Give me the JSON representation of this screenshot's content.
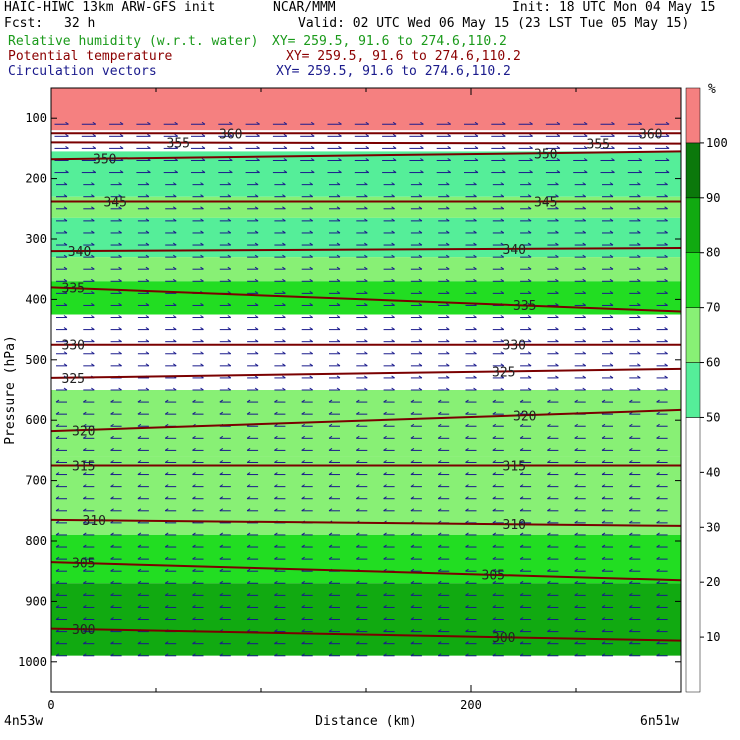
{
  "header": {
    "model": "HAIC-HIWC 13km ARW-GFS init",
    "center": "NCAR/MMM",
    "init": "Init: 18 UTC Mon 04 May 15",
    "fcst_label": "Fcst:",
    "fcst_value": "32 h",
    "valid": "Valid: 02 UTC Wed 06 May 15 (23 LST Tue 05 May 15)"
  },
  "fields": [
    {
      "label": "Relative humidity (w.r.t. water)",
      "xy": "XY= 259.5, 91.6 to 274.6,110.2",
      "color": "#1a9a1a"
    },
    {
      "label": "Potential temperature",
      "xy": "XY= 259.5, 91.6 to 274.6,110.2",
      "color": "#8b0000"
    },
    {
      "label": "Circulation vectors",
      "xy": "XY= 259.5, 91.6 to 274.6,110.2",
      "color": "#1a1a8c"
    }
  ],
  "chart_data": {
    "type": "heatmap",
    "xlabel": "Distance (km)",
    "ylabel": "Pressure (hPa)",
    "x_ticks": [
      0,
      200
    ],
    "xlim": [
      0,
      300
    ],
    "y_ticks": [
      100,
      200,
      300,
      400,
      500,
      600,
      700,
      800,
      900,
      1000
    ],
    "ylim": [
      1050,
      50
    ],
    "x_left_label": "4n53w",
    "x_right_label": "6n51w",
    "colorbar": {
      "unit": "%",
      "ticks": [
        10,
        20,
        30,
        40,
        50,
        60,
        70,
        80,
        90,
        100
      ],
      "bins": [
        {
          "lo": 0,
          "hi": 50,
          "color": "#ffffff"
        },
        {
          "lo": 50,
          "hi": 60,
          "color": "#55ee99"
        },
        {
          "lo": 60,
          "hi": 70,
          "color": "#88f075"
        },
        {
          "lo": 70,
          "hi": 80,
          "color": "#22dd22"
        },
        {
          "lo": 80,
          "hi": 90,
          "color": "#11aa11"
        },
        {
          "lo": 90,
          "hi": 100,
          "color": "#0b780b"
        },
        {
          "lo": 100,
          "hi": 110,
          "color": "#f58080"
        }
      ]
    },
    "rh_layers": [
      {
        "p_top": 50,
        "p_bot": 120,
        "rh": 105
      },
      {
        "p_top": 120,
        "p_bot": 155,
        "rh": 35
      },
      {
        "p_top": 155,
        "p_bot": 175,
        "rh": 58
      },
      {
        "p_top": 175,
        "p_bot": 230,
        "rh": 55
      },
      {
        "p_top": 230,
        "p_bot": 265,
        "rh": 65
      },
      {
        "p_top": 265,
        "p_bot": 330,
        "rh": 55
      },
      {
        "p_top": 330,
        "p_bot": 370,
        "rh": 65
      },
      {
        "p_top": 370,
        "p_bot": 425,
        "rh": 75
      },
      {
        "p_top": 425,
        "p_bot": 550,
        "rh": 35
      },
      {
        "p_top": 550,
        "p_bot": 660,
        "rh": 65
      },
      {
        "p_top": 660,
        "p_bot": 790,
        "rh": 65
      },
      {
        "p_top": 790,
        "p_bot": 870,
        "rh": 75
      },
      {
        "p_top": 870,
        "p_bot": 990,
        "rh": 85
      },
      {
        "p_top": 990,
        "p_bot": 1050,
        "rh": 0
      }
    ],
    "theta_series": [
      {
        "name": "360",
        "p": [
          125,
          125
        ]
      },
      {
        "name": "355",
        "p": [
          140,
          142
        ]
      },
      {
        "name": "350",
        "p": [
          168,
          155
        ]
      },
      {
        "name": "345",
        "p": [
          238,
          238
        ]
      },
      {
        "name": "340",
        "p": [
          320,
          315
        ]
      },
      {
        "name": "335",
        "p": [
          380,
          420
        ]
      },
      {
        "name": "330",
        "p": [
          475,
          475
        ]
      },
      {
        "name": "325",
        "p": [
          530,
          515
        ]
      },
      {
        "name": "320",
        "p": [
          618,
          583
        ]
      },
      {
        "name": "315",
        "p": [
          675,
          675
        ]
      },
      {
        "name": "310",
        "p": [
          765,
          775
        ]
      },
      {
        "name": "305",
        "p": [
          835,
          865
        ]
      },
      {
        "name": "300",
        "p": [
          945,
          965
        ]
      }
    ],
    "theta_label_positions": [
      {
        "name": "360",
        "x": [
          80,
          280
        ]
      },
      {
        "name": "355",
        "x": [
          55,
          255
        ]
      },
      {
        "name": "350",
        "x": [
          20,
          230
        ]
      },
      {
        "name": "345",
        "x": [
          25,
          230
        ]
      },
      {
        "name": "340",
        "x": [
          8,
          215
        ]
      },
      {
        "name": "335",
        "x": [
          5,
          220
        ]
      },
      {
        "name": "330",
        "x": [
          5,
          215
        ]
      },
      {
        "name": "325",
        "x": [
          5,
          210
        ]
      },
      {
        "name": "320",
        "x": [
          10,
          220
        ]
      },
      {
        "name": "315",
        "x": [
          10,
          215
        ]
      },
      {
        "name": "310",
        "x": [
          15,
          215
        ]
      },
      {
        "name": "305",
        "x": [
          10,
          205
        ]
      },
      {
        "name": "300",
        "x": [
          10,
          210
        ]
      }
    ]
  }
}
